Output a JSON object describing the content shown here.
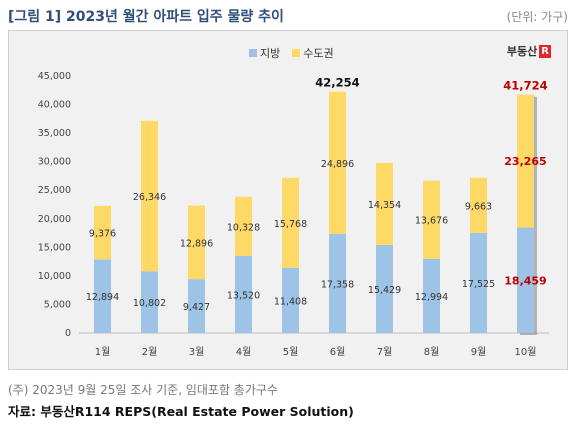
{
  "page": {
    "title": "[그림 1] 2023년 월간 아파트 입주 물량 추이",
    "unit": "(단위: 가구)",
    "note": "(주) 2023년 9월 25일 조사 기준, 임대포함 총가구수",
    "source": "자료: 부동산R114 REPS(Real Estate Power Solution)",
    "logo_text": "부동산",
    "logo_mark": "R114"
  },
  "colors": {
    "local": "#9dc3e6",
    "capital": "#ffd966",
    "frame_bg": "#f1f1f1",
    "highlight_red": "#c00000"
  },
  "chart_data": {
    "type": "bar",
    "stacked": true,
    "categories": [
      "1월",
      "2월",
      "3월",
      "4월",
      "5월",
      "6월",
      "7월",
      "8월",
      "9월",
      "10월"
    ],
    "series": [
      {
        "name": "지방",
        "values": [
          12894,
          10802,
          9427,
          13520,
          11408,
          17358,
          15429,
          12994,
          17525,
          18459
        ]
      },
      {
        "name": "수도권",
        "values": [
          9376,
          26346,
          12896,
          10328,
          15768,
          24896,
          14354,
          13676,
          9663,
          23265
        ]
      }
    ],
    "totals_labeled": [
      {
        "category": "6월",
        "value": "42,254"
      },
      {
        "category": "10월",
        "value": "41,724"
      }
    ],
    "ylim": [
      0,
      45000
    ],
    "yticks": [
      "0",
      "5,000",
      "10,000",
      "15,000",
      "20,000",
      "25,000",
      "30,000",
      "35,000",
      "40,000",
      "45,000"
    ],
    "legend_position": "top-center",
    "grid": false
  }
}
